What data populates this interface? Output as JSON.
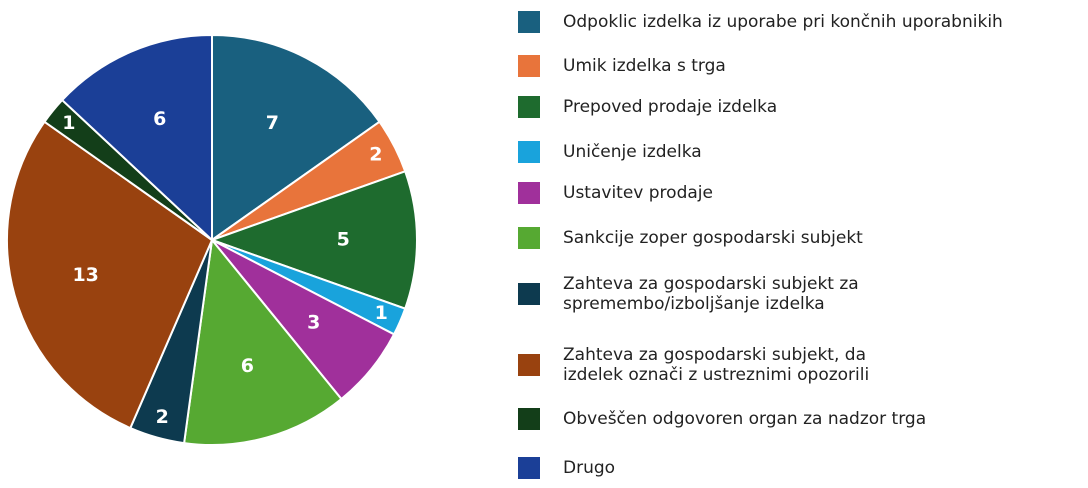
{
  "chart_data": {
    "type": "pie",
    "categories": [
      "Odpoklic izdelka iz uporabe pri končnih uporabnikih",
      "Umik izdelka s trga",
      "Prepoved prodaje izdelka",
      "Uničenje izdelka",
      "Ustavitev prodaje",
      "Sankcije zoper gospodarski subjekt",
      "Zahteva za gospodarski subjekt za\nspremembo/izboljšanje izdelka",
      "Zahteva za gospodarski subjekt, da\nizdelek označi z ustreznimi opozorili",
      "Obveščen odgovoren organ za nadzor trga",
      "Drugo"
    ],
    "values": [
      7,
      2,
      5,
      1,
      3,
      6,
      2,
      13,
      1,
      6
    ],
    "colors": [
      "#19607f",
      "#e8743b",
      "#1e6b2e",
      "#19a3dc",
      "#a0309b",
      "#56a932",
      "#0d3a4f",
      "#99420f",
      "#133e19",
      "#1b3f97"
    ]
  }
}
